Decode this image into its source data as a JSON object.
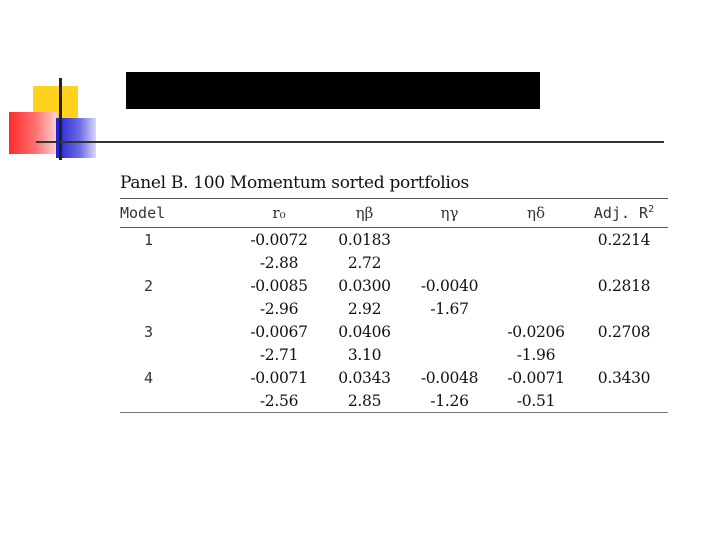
{
  "slide": {
    "colors": {
      "title_bar": "#000000",
      "accent_yellow": "#ffd21e",
      "accent_red": "#ff2a2a",
      "accent_blue": "#2020d0"
    }
  },
  "panel": {
    "title": "Panel B. 100 Momentum sorted portfolios",
    "headers": {
      "model": "Model",
      "r0": "r₀",
      "eta_beta": "ηβ",
      "eta_gamma": "ηγ",
      "eta_delta": "ηδ",
      "adj_r2": "Adj. R",
      "adj_r2_sup": "2"
    },
    "rows": [
      {
        "model": "1",
        "coef": [
          "-0.0072",
          "0.0183",
          "",
          "",
          "0.2214"
        ],
        "tstat": [
          "-2.88",
          "2.72",
          "",
          "",
          ""
        ]
      },
      {
        "model": "2",
        "coef": [
          "-0.0085",
          "0.0300",
          "-0.0040",
          "",
          "0.2818"
        ],
        "tstat": [
          "-2.96",
          "2.92",
          "-1.67",
          "",
          ""
        ]
      },
      {
        "model": "3",
        "coef": [
          "-0.0067",
          "0.0406",
          "",
          "-0.0206",
          "0.2708"
        ],
        "tstat": [
          "-2.71",
          "3.10",
          "",
          "-1.96",
          ""
        ]
      },
      {
        "model": "4",
        "coef": [
          "-0.0071",
          "0.0343",
          "-0.0048",
          "-0.0071",
          "0.3430"
        ],
        "tstat": [
          "-2.56",
          "2.85",
          "-1.26",
          "-0.51",
          ""
        ]
      }
    ]
  }
}
